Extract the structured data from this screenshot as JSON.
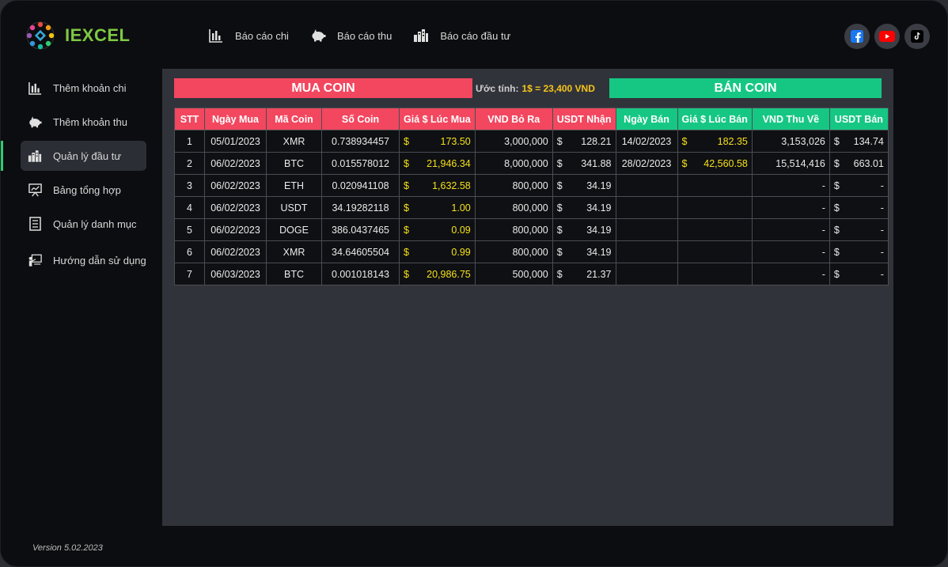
{
  "app": {
    "logo_text": "IEXCEL",
    "version": "Version 5.02.2023",
    "accent_green": "#7ec842"
  },
  "topnav": [
    {
      "label": "Báo cáo chi",
      "icon": "bar-chart-icon"
    },
    {
      "label": "Báo cáo thu",
      "icon": "piggy-bank-icon"
    },
    {
      "label": "Báo cáo đầu tư",
      "icon": "buildings-chart-icon"
    }
  ],
  "social": [
    {
      "icon": "facebook-icon",
      "color": "#1877f2"
    },
    {
      "icon": "youtube-icon",
      "color": "#ff0000"
    },
    {
      "icon": "tiktok-icon",
      "color": "#000000"
    }
  ],
  "sidebar": {
    "items": [
      {
        "label": "Thêm khoản chi",
        "icon": "bar-chart-icon"
      },
      {
        "label": "Thêm khoản thu",
        "icon": "piggy-bank-icon"
      },
      {
        "label": "Quản lý đầu tư",
        "icon": "buildings-chart-icon",
        "active": true
      },
      {
        "label": "Bảng tổng hợp",
        "icon": "presentation-icon"
      },
      {
        "label": "Quản lý danh mục",
        "icon": "list-icon"
      },
      {
        "label": "Hướng dẫn sử dụng",
        "icon": "teacher-icon"
      }
    ]
  },
  "main": {
    "buy_header": "MUA COIN",
    "sell_header": "BÁN COIN",
    "rate_label": "Ước tính:",
    "rate_value": "1$ = 23,400 VND",
    "colors": {
      "buy": "#f2475f",
      "sell": "#16c784",
      "price": "#f5e11a"
    },
    "columns": [
      "STT",
      "Ngày Mua",
      "Mã Coin",
      "Số Coin",
      "Giá $ Lúc Mua",
      "VND Bỏ Ra",
      "USDT Nhận",
      "Ngày Bán",
      "Giá $ Lúc Bán",
      "VND Thu Về",
      "USDT Bán"
    ],
    "currency_symbol": "$",
    "rows": [
      {
        "stt": "1",
        "buy_date": "05/01/2023",
        "coin": "XMR",
        "amount": "0.738934457",
        "buy_price": "173.50",
        "vnd_out": "3,000,000",
        "usdt_in": "128.21",
        "sell_date": "14/02/2023",
        "sell_price": "182.35",
        "vnd_in": "3,153,026",
        "usdt_out": "134.74"
      },
      {
        "stt": "2",
        "buy_date": "06/02/2023",
        "coin": "BTC",
        "amount": "0.015578012",
        "buy_price": "21,946.34",
        "vnd_out": "8,000,000",
        "usdt_in": "341.88",
        "sell_date": "28/02/2023",
        "sell_price": "42,560.58",
        "vnd_in": "15,514,416",
        "usdt_out": "663.01"
      },
      {
        "stt": "3",
        "buy_date": "06/02/2023",
        "coin": "ETH",
        "amount": "0.020941108",
        "buy_price": "1,632.58",
        "vnd_out": "800,000",
        "usdt_in": "34.19",
        "sell_date": "",
        "sell_price": "",
        "vnd_in": "-",
        "usdt_out": "-"
      },
      {
        "stt": "4",
        "buy_date": "06/02/2023",
        "coin": "USDT",
        "amount": "34.19282118",
        "buy_price": "1.00",
        "vnd_out": "800,000",
        "usdt_in": "34.19",
        "sell_date": "",
        "sell_price": "",
        "vnd_in": "-",
        "usdt_out": "-"
      },
      {
        "stt": "5",
        "buy_date": "06/02/2023",
        "coin": "DOGE",
        "amount": "386.0437465",
        "buy_price": "0.09",
        "vnd_out": "800,000",
        "usdt_in": "34.19",
        "sell_date": "",
        "sell_price": "",
        "vnd_in": "-",
        "usdt_out": "-"
      },
      {
        "stt": "6",
        "buy_date": "06/02/2023",
        "coin": "XMR",
        "amount": "34.64605504",
        "buy_price": "0.99",
        "vnd_out": "800,000",
        "usdt_in": "34.19",
        "sell_date": "",
        "sell_price": "",
        "vnd_in": "-",
        "usdt_out": "-"
      },
      {
        "stt": "7",
        "buy_date": "06/03/2023",
        "coin": "BTC",
        "amount": "0.001018143",
        "buy_price": "20,986.75",
        "vnd_out": "500,000",
        "usdt_in": "21.37",
        "sell_date": "",
        "sell_price": "",
        "vnd_in": "-",
        "usdt_out": "-"
      }
    ]
  }
}
